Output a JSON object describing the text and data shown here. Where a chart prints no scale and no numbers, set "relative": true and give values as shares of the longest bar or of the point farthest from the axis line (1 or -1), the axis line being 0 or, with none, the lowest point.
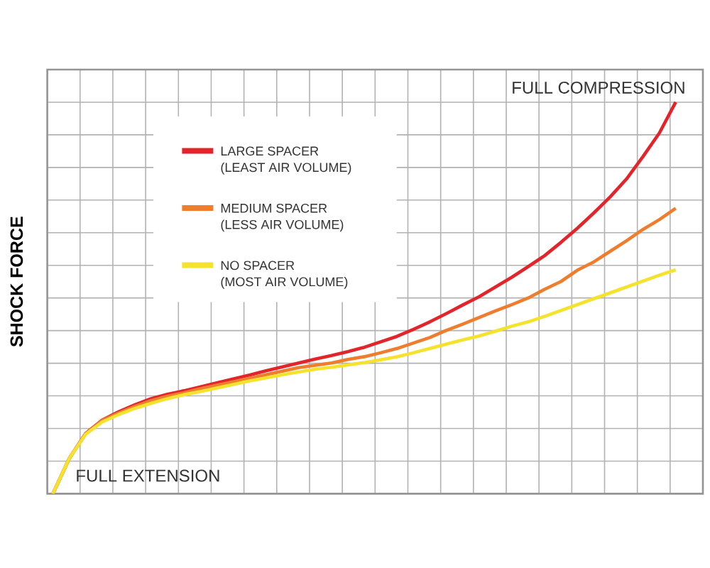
{
  "chart_data": {
    "type": "line",
    "ylabel": "SHOCK FORCE",
    "annotations": [
      "FULL COMPRESSION",
      "FULL EXTENSION"
    ],
    "relative": true,
    "grid": true,
    "legend": "top left",
    "categories": [
      null,
      null,
      null,
      null,
      null,
      null,
      null,
      null,
      null,
      null,
      null,
      null,
      null,
      null,
      null,
      null,
      null,
      null,
      null,
      null,
      null,
      null,
      null,
      null,
      null,
      null,
      null,
      null,
      null,
      null,
      null,
      null,
      null,
      null,
      null,
      null,
      null,
      null,
      null
    ],
    "series": [
      {
        "name": "LARGE SPACER (LEAST AIR VOLUME)",
        "color": "#e2252b",
        "values": [
          0,
          0.09,
          0.154,
          0.188,
          0.209,
          0.227,
          0.243,
          0.254,
          0.263,
          0.273,
          0.283,
          0.293,
          0.303,
          0.314,
          0.324,
          0.334,
          0.344,
          0.353,
          0.363,
          0.374,
          0.388,
          0.402,
          0.42,
          0.439,
          0.46,
          0.482,
          0.503,
          0.528,
          0.553,
          0.58,
          0.608,
          0.642,
          0.678,
          0.717,
          0.758,
          0.804,
          0.861,
          0.921,
          1
        ]
      },
      {
        "name": "MEDIUM SPACER (LESS AIR VOLUME)",
        "color": "#ee7d2d",
        "values": [
          0,
          0.09,
          0.153,
          0.187,
          0.206,
          0.223,
          0.238,
          0.249,
          0.258,
          0.268,
          0.277,
          0.286,
          0.295,
          0.304,
          0.313,
          0.322,
          0.328,
          0.334,
          0.343,
          0.35,
          0.36,
          0.371,
          0.385,
          0.399,
          0.417,
          0.433,
          0.45,
          0.467,
          0.483,
          0.5,
          0.522,
          0.542,
          0.571,
          0.592,
          0.619,
          0.646,
          0.675,
          0.7,
          0.729
        ]
      },
      {
        "name": "NO SPACER (MOST AIR VOLUME)",
        "color": "#f4e22c",
        "values": [
          0,
          0.09,
          0.152,
          0.183,
          0.202,
          0.218,
          0.231,
          0.243,
          0.253,
          0.261,
          0.27,
          0.279,
          0.288,
          0.296,
          0.304,
          0.311,
          0.318,
          0.323,
          0.329,
          0.335,
          0.342,
          0.35,
          0.36,
          0.371,
          0.382,
          0.393,
          0.403,
          0.415,
          0.428,
          0.439,
          0.453,
          0.468,
          0.483,
          0.498,
          0.513,
          0.528,
          0.543,
          0.558,
          0.572
        ]
      }
    ]
  }
}
